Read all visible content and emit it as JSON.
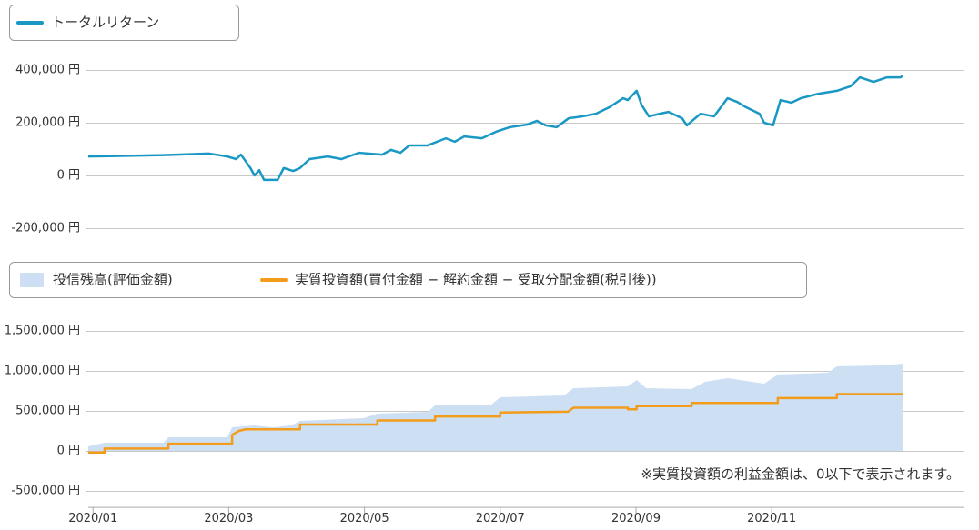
{
  "chart_data": [
    {
      "type": "line",
      "legend": "top-left",
      "xlim": [
        -0.07,
        12.84
      ],
      "ylim": [
        -250000,
        450000
      ],
      "yticks": [
        {
          "value": 400000,
          "label": "400,000 円"
        },
        {
          "value": 200000,
          "label": "200,000 円"
        },
        {
          "value": 0,
          "label": "0 円"
        },
        {
          "value": -200000,
          "label": "-200,000 円"
        }
      ],
      "grid": true,
      "series": [
        {
          "name": "トータルリターン",
          "color": "#1a98c4",
          "kind": "line",
          "x": [
            -0.07,
            1.04,
            1.71,
            1.98,
            2.11,
            2.18,
            2.32,
            2.38,
            2.45,
            2.52,
            2.72,
            2.81,
            2.95,
            3.05,
            3.19,
            3.46,
            3.66,
            3.92,
            4.26,
            4.39,
            4.53,
            4.66,
            4.93,
            5.2,
            5.33,
            5.47,
            5.73,
            5.94,
            6.14,
            6.4,
            6.54,
            6.67,
            6.83,
            7.01,
            7.21,
            7.41,
            7.61,
            7.81,
            7.88,
            8.01,
            8.08,
            8.19,
            8.35,
            8.48,
            8.68,
            8.75,
            8.95,
            9.15,
            9.35,
            9.49,
            9.62,
            9.82,
            9.89,
            10.02,
            10.13,
            10.29,
            10.43,
            10.69,
            10.96,
            11.16,
            11.3,
            11.5,
            11.7,
            11.9,
            11.93
          ],
          "values": [
            72000,
            77000,
            83000,
            72000,
            62000,
            79000,
            28000,
            0,
            20000,
            -17000,
            -17000,
            28000,
            17000,
            28000,
            62000,
            72000,
            62000,
            86000,
            79000,
            97000,
            86000,
            114000,
            114000,
            141000,
            128000,
            148000,
            141000,
            166000,
            183000,
            193000,
            207000,
            190000,
            183000,
            217000,
            224000,
            234000,
            259000,
            293000,
            286000,
            321000,
            269000,
            224000,
            234000,
            241000,
            217000,
            190000,
            234000,
            224000,
            293000,
            279000,
            259000,
            234000,
            200000,
            190000,
            286000,
            276000,
            293000,
            310000,
            321000,
            338000,
            372000,
            355000,
            372000,
            372000,
            379000
          ]
        }
      ]
    },
    {
      "type": "line",
      "legend": "top-left",
      "xlim": [
        -0.07,
        12.84
      ],
      "ylim": [
        -700000,
        1700000
      ],
      "yticks": [
        {
          "value": 1500000,
          "label": "1,500,000 円"
        },
        {
          "value": 1000000,
          "label": "1,000,000 円"
        },
        {
          "value": 500000,
          "label": "500,000 円"
        },
        {
          "value": 0,
          "label": "0 円"
        },
        {
          "value": -500000,
          "label": "-500,000 円"
        }
      ],
      "xticks": [
        {
          "value": 0,
          "label": "2020/01"
        },
        {
          "value": 2,
          "label": "2020/03"
        },
        {
          "value": 4,
          "label": "2020/05"
        },
        {
          "value": 6,
          "label": "2020/07"
        },
        {
          "value": 8,
          "label": "2020/09"
        },
        {
          "value": 10,
          "label": "2020/11"
        }
      ],
      "grid": true,
      "annotation": "※実質投資額の利益金額は、0以下で表示されます。",
      "series": [
        {
          "name": "投信残高(評価金額)",
          "color": "#cddff3",
          "kind": "area",
          "x": [
            -0.07,
            0.17,
            1.04,
            1.11,
            1.98,
            2.05,
            2.38,
            2.65,
            2.92,
            3.05,
            3.99,
            4.19,
            4.93,
            5.04,
            5.87,
            6.0,
            6.94,
            7.08,
            7.88,
            8.01,
            8.15,
            8.82,
            9.02,
            9.35,
            9.89,
            10.09,
            10.83,
            10.96,
            11.63,
            11.93
          ],
          "values": [
            57000,
            102000,
            102000,
            170000,
            170000,
            295000,
            318000,
            295000,
            318000,
            375000,
            409000,
            466000,
            489000,
            568000,
            580000,
            670000,
            693000,
            784000,
            807000,
            886000,
            784000,
            773000,
            864000,
            909000,
            841000,
            955000,
            977000,
            1057000,
            1068000,
            1091000
          ]
        },
        {
          "name": "実質投資額(買付金額 − 解約金額 − 受取分配金額(税引後))",
          "color": "#f39c1b",
          "kind": "line",
          "x": [
            -0.07,
            0.17,
            0.17,
            1.11,
            1.11,
            2.05,
            2.05,
            2.15,
            2.25,
            3.05,
            3.05,
            4.19,
            4.19,
            5.04,
            5.04,
            6.0,
            6.0,
            7.0,
            7.08,
            7.88,
            7.88,
            8.01,
            8.01,
            8.82,
            8.82,
            10.09,
            10.09,
            10.96,
            10.96,
            11.93
          ],
          "values": [
            -20000,
            -20000,
            30000,
            30000,
            90000,
            90000,
            200000,
            250000,
            270000,
            270000,
            330000,
            330000,
            380000,
            380000,
            430000,
            430000,
            480000,
            490000,
            540000,
            540000,
            520000,
            520000,
            560000,
            560000,
            600000,
            600000,
            660000,
            660000,
            710000,
            710000
          ]
        }
      ]
    }
  ]
}
